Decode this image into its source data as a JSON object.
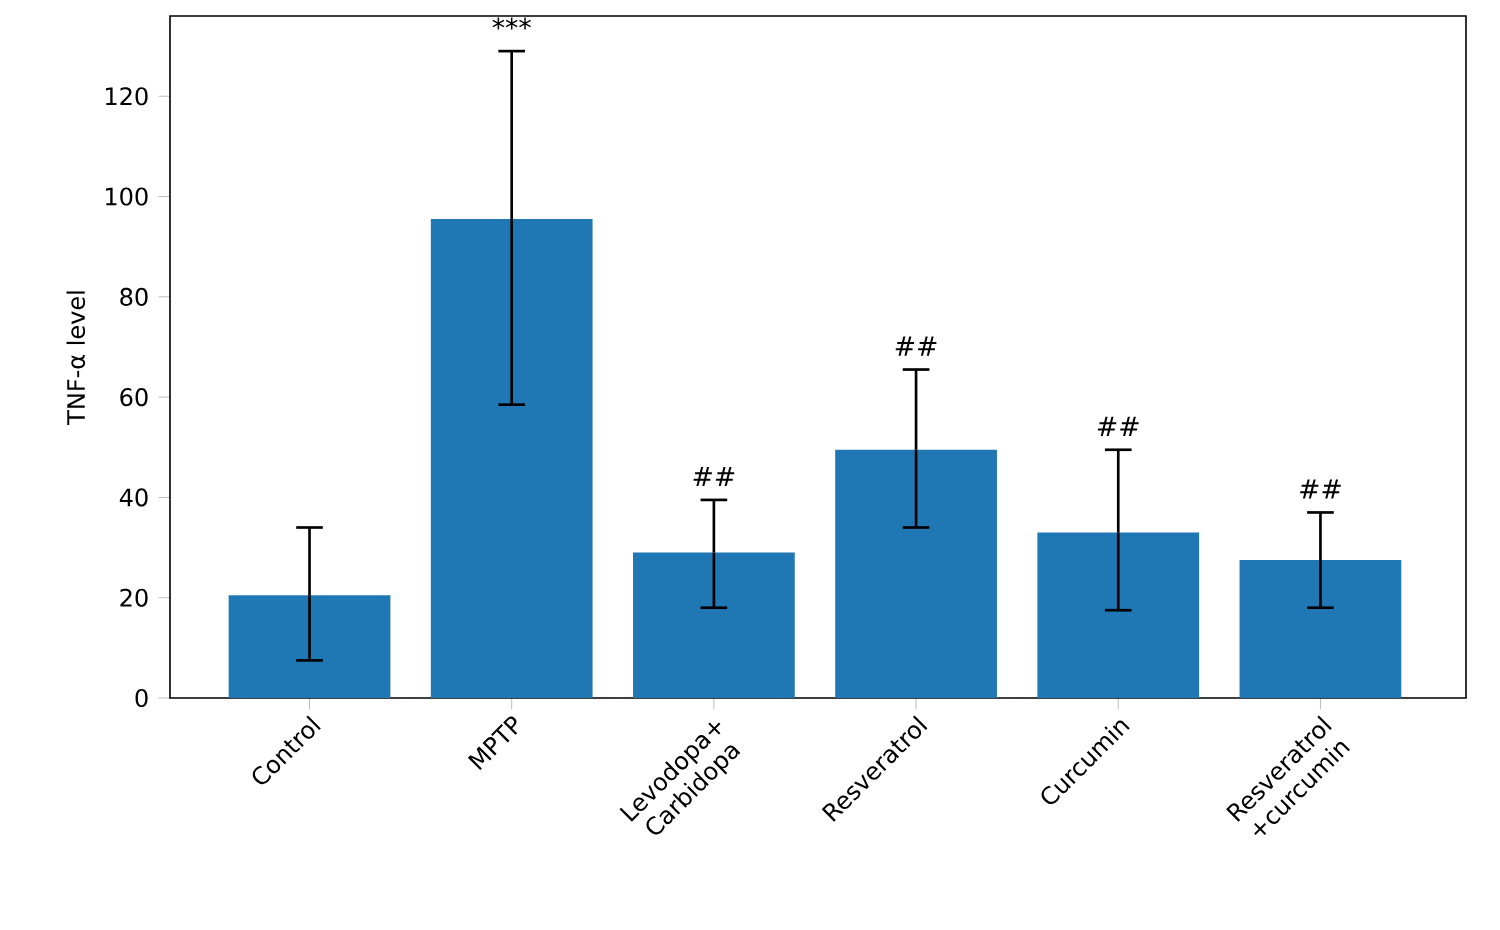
{
  "chart_data": {
    "type": "bar",
    "ylabel": "TNF-α level",
    "categories": [
      "Control",
      "MPTP",
      "Levodopa+ Carbidopa",
      "Resveratrol",
      "Curcumin",
      "Resveratrol +curcumin"
    ],
    "values": [
      20.5,
      95.5,
      29,
      49.5,
      33,
      27.5
    ],
    "errors": [
      [
        7.5,
        34
      ],
      [
        58.5,
        129
      ],
      [
        18,
        39.5
      ],
      [
        34,
        65.5
      ],
      [
        17.5,
        49.5
      ],
      [
        18,
        37
      ]
    ],
    "color": "#1f77b4",
    "ylim": [
      0,
      136
    ],
    "yticks": [
      0,
      20,
      40,
      60,
      80,
      100,
      120
    ],
    "annotations": [
      {
        "text": "***",
        "x": "MPTP",
        "y": 129
      },
      {
        "text": "##",
        "x": "Levodopa+ Carbidopa",
        "y": 39.5
      },
      {
        "text": "##",
        "x": "Resveratrol",
        "y": 65.5
      },
      {
        "text": "##",
        "x": "Curcumin",
        "y": 49.5
      },
      {
        "text": "##",
        "x": "Resveratrol +curcumin",
        "y": 37
      }
    ]
  }
}
